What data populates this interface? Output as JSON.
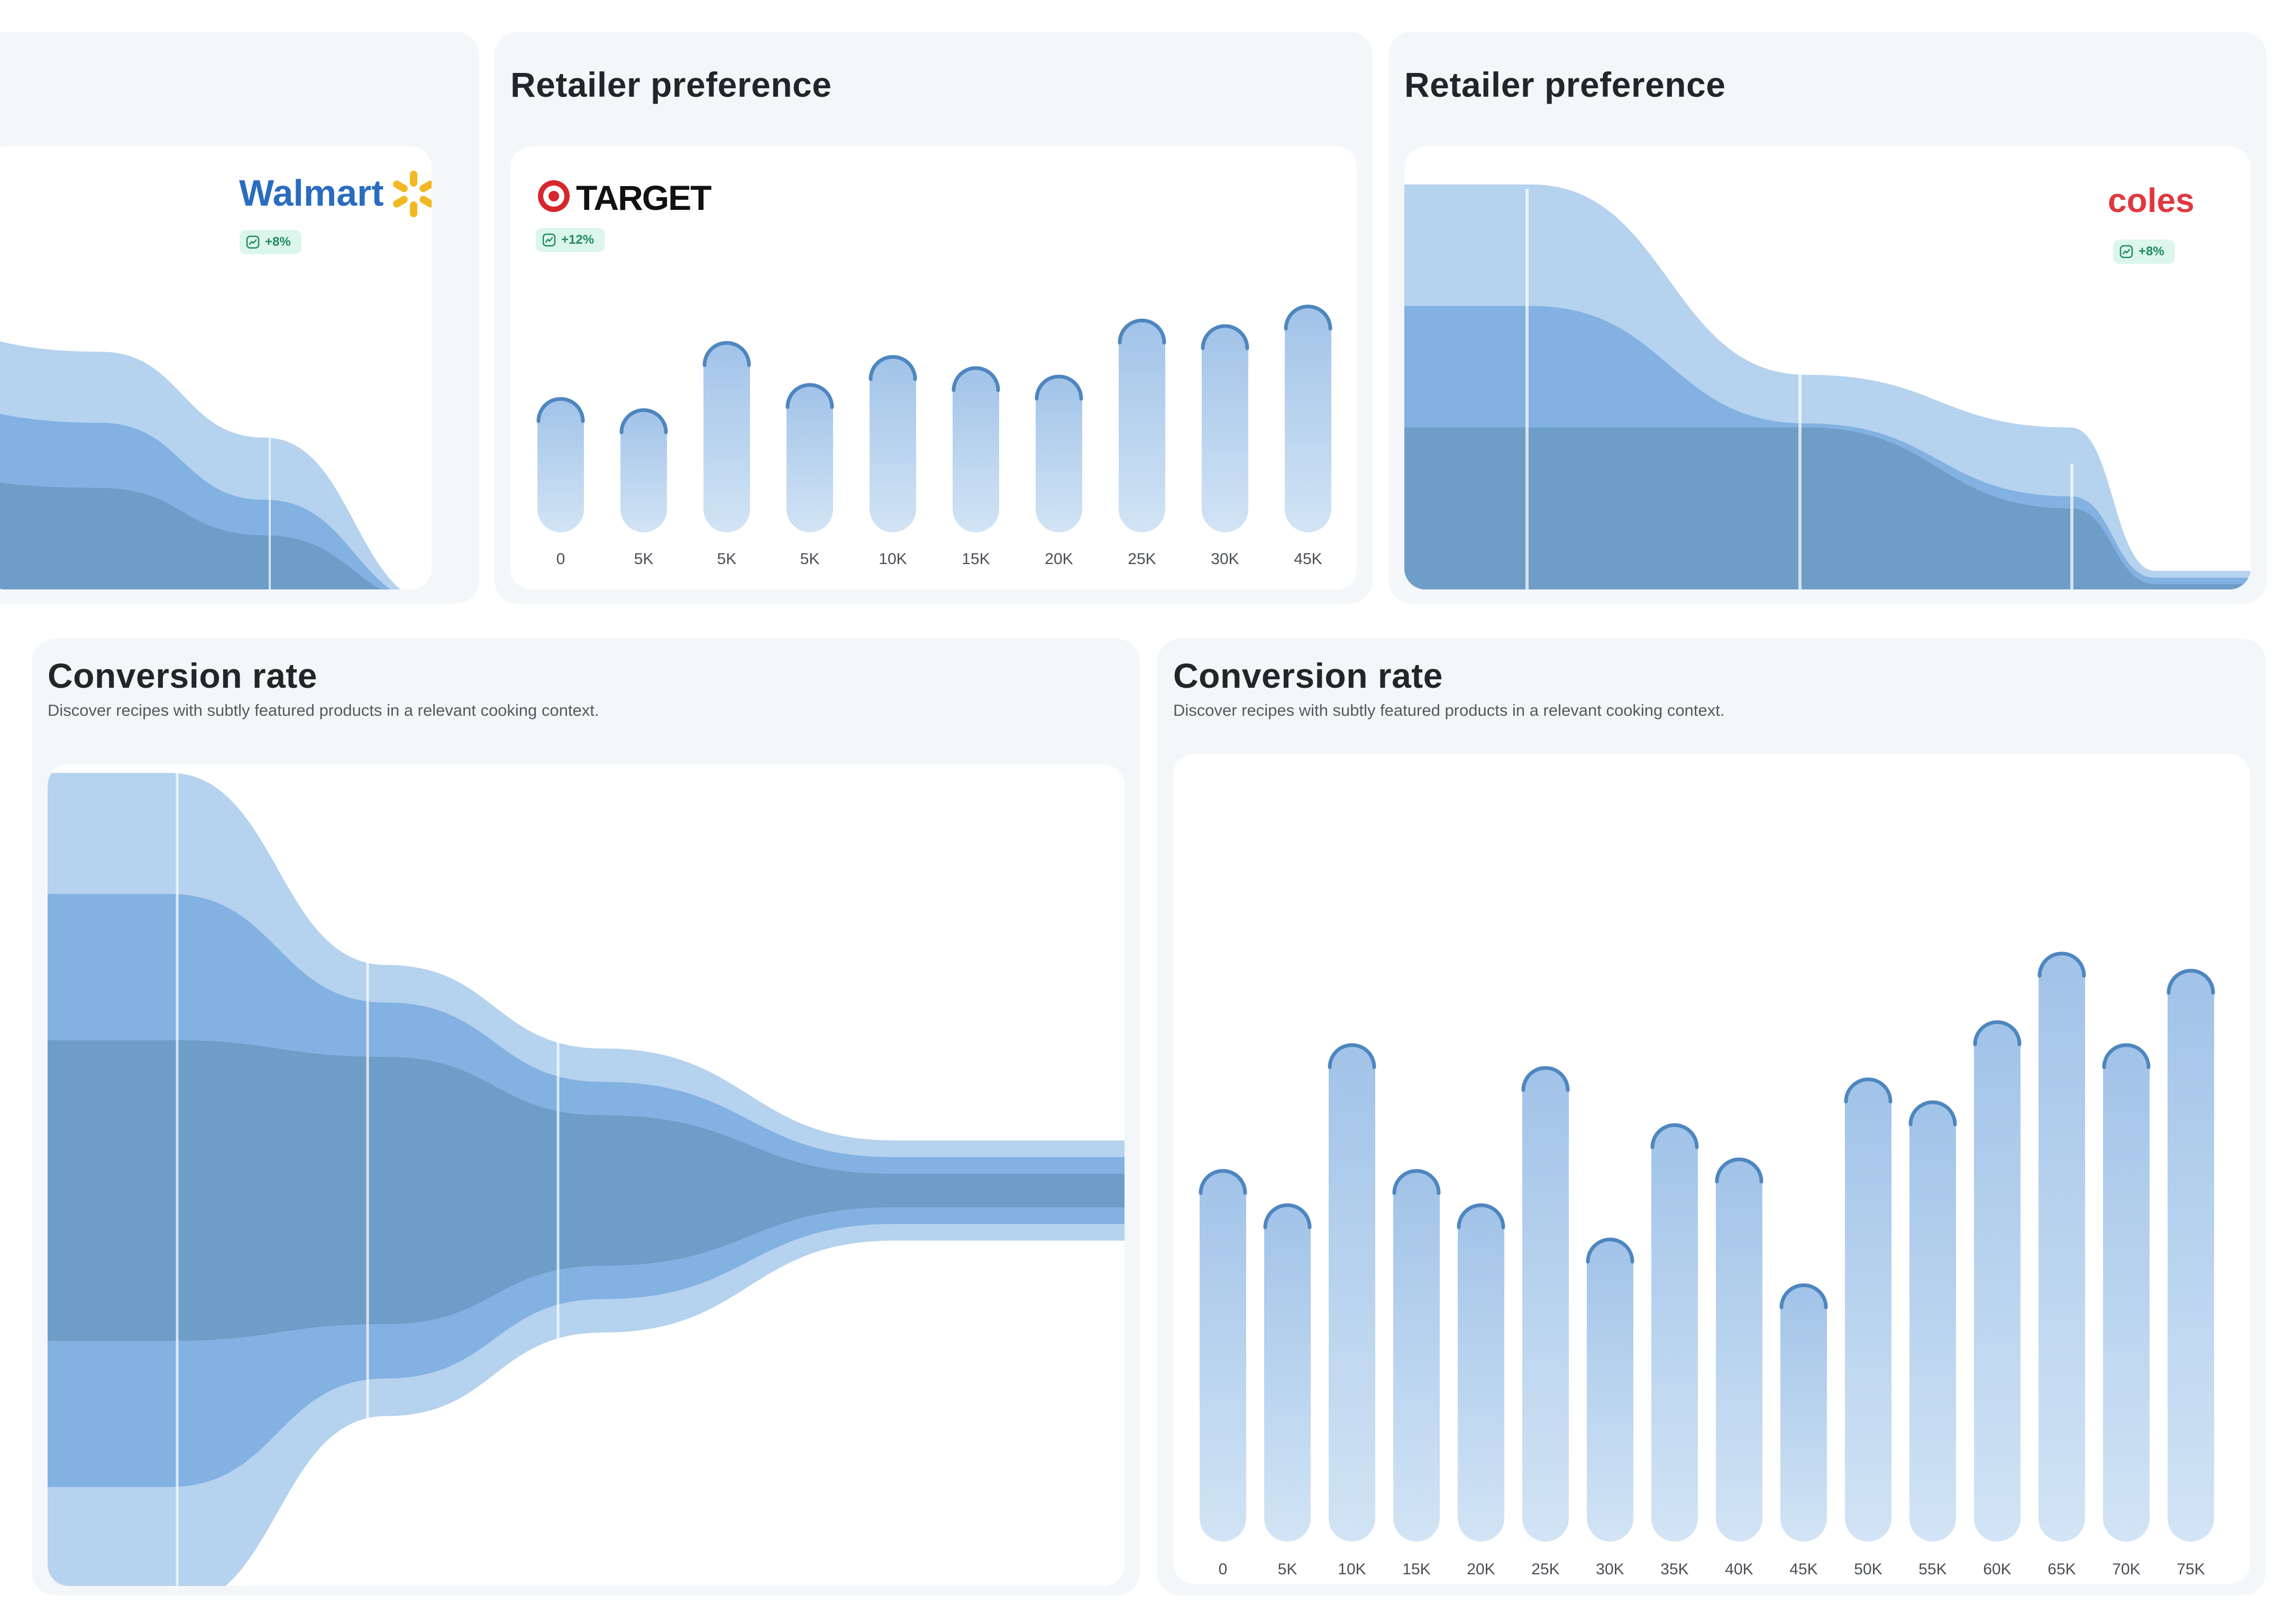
{
  "colors": {
    "light": "#b5d2ee",
    "mid": "#82b1e2",
    "dark": "#6e9dc8",
    "bar_top": "#a1c3e8",
    "bar_bottom": "#d2e4f5",
    "bar_cap": "#4e86bf",
    "badge_bg": "#dcf6ec",
    "badge_text": "#1f8a62",
    "card_bg": "#f4f7fa"
  },
  "cards": [
    {
      "title": "",
      "retailer": "Walmart",
      "badge": "+8%",
      "chart_data": {
        "type": "area",
        "subtype": "funnel",
        "title": "",
        "series": [
          {
            "name": "outer",
            "values": [
              100,
              86,
              57,
              0
            ]
          },
          {
            "name": "middle",
            "values": [
              74,
              62,
              36,
              0
            ]
          },
          {
            "name": "inner",
            "values": [
              47,
              40,
              24,
              0
            ]
          }
        ]
      }
    },
    {
      "title": "Retailer preference",
      "retailer": "TARGET",
      "badge": "+12%",
      "chart_data": {
        "type": "bar",
        "title": "Retailer preference",
        "categories": [
          "0",
          "5K",
          "5K",
          "5K",
          "10K",
          "15K",
          "20K",
          "25K",
          "30K",
          "45K"
        ],
        "values": [
          48,
          44,
          68,
          53,
          63,
          59,
          56,
          76,
          74,
          81
        ],
        "ylim": [
          0,
          100
        ]
      }
    },
    {
      "title": "Retailer preference",
      "retailer": "coles",
      "badge": "+8%",
      "chart_data": {
        "type": "area",
        "subtype": "funnel",
        "title": "Retailer preference",
        "series": [
          {
            "name": "outer",
            "values": [
              100,
              100,
              53,
              40,
              0
            ]
          },
          {
            "name": "middle",
            "values": [
              70,
              70,
              41,
              23,
              0
            ]
          },
          {
            "name": "inner",
            "values": [
              40,
              40,
              40,
              20,
              0
            ]
          }
        ]
      }
    },
    {
      "title": "Conversion rate",
      "subtitle": "Discover recipes with subtly featured products in a relevant cooking context.",
      "chart_data": {
        "type": "area",
        "subtype": "funnel",
        "title": "Conversion rate",
        "series": [
          {
            "name": "outer",
            "values": [
              100,
              100,
              54,
              34,
              12
            ]
          },
          {
            "name": "middle",
            "values": [
              71,
              71,
              45,
              26,
              8
            ]
          },
          {
            "name": "inner",
            "values": [
              36,
              36,
              32,
              18,
              4
            ]
          }
        ]
      }
    },
    {
      "title": "Conversion rate",
      "subtitle": "Discover recipes with subtly featured products in a relevant cooking context.",
      "chart_data": {
        "type": "bar",
        "title": "Conversion rate",
        "categories": [
          "0",
          "5K",
          "10K",
          "15K",
          "20K",
          "25K",
          "30K",
          "35K",
          "40K",
          "45K",
          "50K",
          "55K",
          "60K",
          "65K",
          "70K",
          "75K"
        ],
        "values": [
          65,
          59,
          87,
          65,
          59,
          83,
          53,
          73,
          67,
          45,
          81,
          77,
          91,
          103,
          87,
          100
        ],
        "ylim": [
          0,
          110
        ]
      }
    }
  ]
}
